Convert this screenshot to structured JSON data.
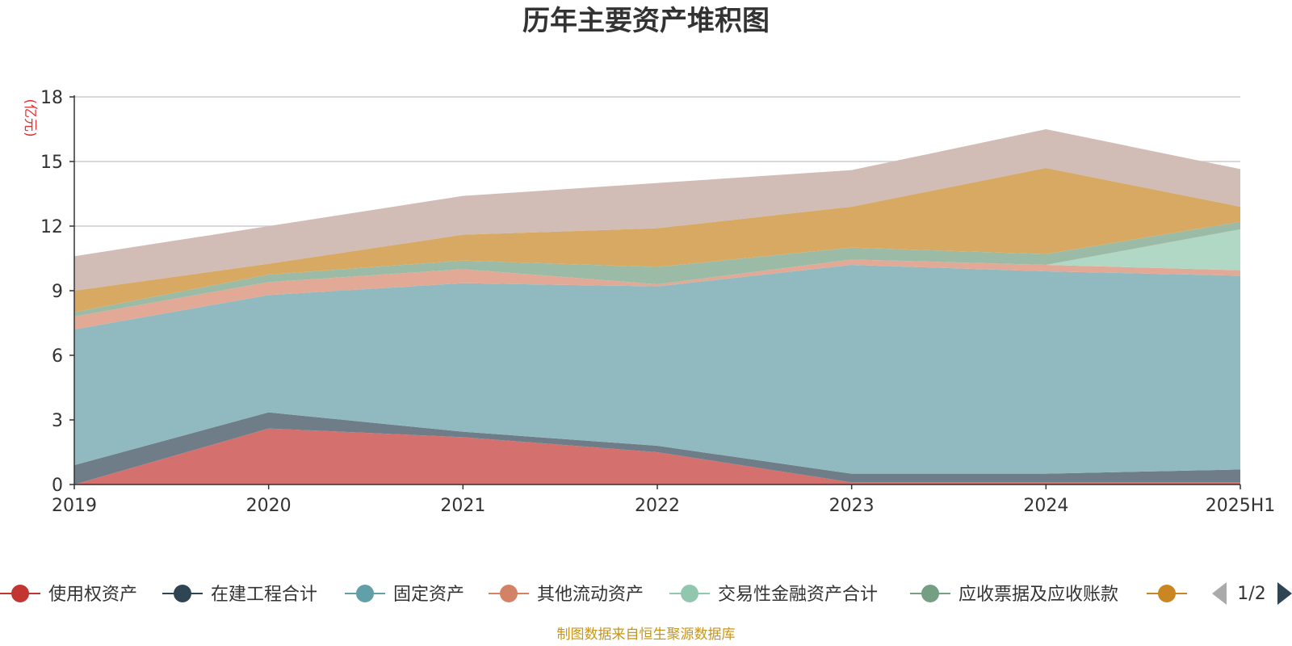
{
  "title": "历年主要资产堆积图",
  "unit_label": "(亿元)",
  "source_note": "制图数据来自恒生聚源数据库",
  "legend_page": "1/2",
  "chart_data": {
    "type": "area",
    "stacked": true,
    "title": "历年主要资产堆积图",
    "ylabel": "(亿元)",
    "categories": [
      "2019",
      "2020",
      "2021",
      "2022",
      "2023",
      "2024",
      "2025H1"
    ],
    "ylim": [
      0,
      18
    ],
    "yticks": [
      0,
      3,
      6,
      9,
      12,
      15,
      18
    ],
    "grid": true,
    "legend_position": "bottom",
    "series": [
      {
        "name": "使用权资产",
        "color": "#c23531",
        "area_color": "#d4716e",
        "values": [
          0.0,
          2.6,
          2.2,
          1.5,
          0.1,
          0.1,
          0.1
        ]
      },
      {
        "name": "在建工程合计",
        "color": "#2f4554",
        "area_color": "#6e7d88",
        "values": [
          0.9,
          0.75,
          0.25,
          0.3,
          0.4,
          0.4,
          0.6
        ]
      },
      {
        "name": "固定资产",
        "color": "#61a0a8",
        "area_color": "#91bac0",
        "values": [
          6.3,
          5.45,
          6.9,
          7.4,
          9.7,
          9.4,
          9.0
        ]
      },
      {
        "name": "其他流动资产",
        "color": "#d48265",
        "area_color": "#e1a996",
        "values": [
          0.6,
          0.6,
          0.65,
          0.1,
          0.25,
          0.3,
          0.25
        ]
      },
      {
        "name": "交易性金融资产合计",
        "color": "#91c7ae",
        "area_color": "#b1d8c5",
        "values": [
          0.0,
          0.0,
          0.0,
          0.0,
          0.0,
          0.0,
          1.9
        ]
      },
      {
        "name": "应收票据及应收账款",
        "color": "#749f83",
        "area_color": "#9cbba7",
        "values": [
          0.2,
          0.35,
          0.4,
          0.8,
          0.55,
          0.5,
          0.35
        ]
      },
      {
        "name": "",
        "color": "#ca8622",
        "area_color": "#d8a962",
        "values": [
          1.0,
          0.5,
          1.2,
          1.8,
          1.9,
          4.0,
          0.7
        ]
      },
      {
        "name": "",
        "color": "#bda29a",
        "area_color": "#d1bcb6",
        "values": [
          1.6,
          1.75,
          1.8,
          2.1,
          1.7,
          1.8,
          1.75
        ]
      }
    ]
  }
}
